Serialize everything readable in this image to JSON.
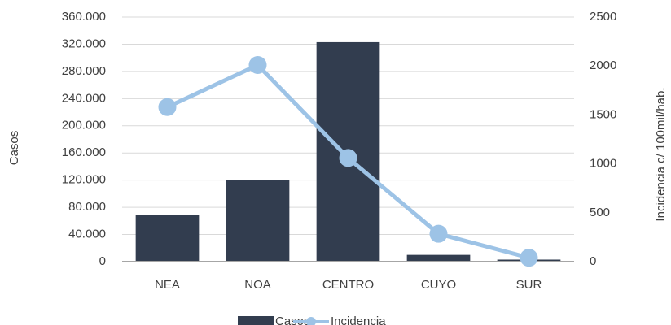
{
  "chart_data": {
    "type": "combo",
    "y_label": "Casos",
    "y2_label": "Incidencia c/ 100mil/hab.",
    "categories": [
      "NEA",
      "NOA",
      "CENTRO",
      "CUYO",
      "SUR"
    ],
    "series": [
      {
        "name": "Casos",
        "type": "bar",
        "color": "#323d4f",
        "values": [
          69000,
          120000,
          323000,
          10000,
          3000
        ]
      },
      {
        "name": "Incidencia",
        "type": "line",
        "axis": "y2",
        "color": "#9dc3e6",
        "values": [
          1580,
          2010,
          1060,
          285,
          40
        ]
      }
    ],
    "ylim": [
      0,
      360000
    ],
    "yticks": [
      0,
      {
        "value": 40000,
        "label": "40.000"
      },
      {
        "value": 80000,
        "label": "80.000"
      },
      {
        "value": 120000,
        "label": "120.000"
      },
      {
        "value": 160000,
        "label": "160.000"
      },
      {
        "value": 200000,
        "label": "200.000"
      },
      {
        "value": 240000,
        "label": "240.000"
      },
      {
        "value": 280000,
        "label": "280.000"
      },
      {
        "value": 320000,
        "label": "320.000"
      },
      {
        "value": 360000,
        "label": "360.000"
      }
    ],
    "y2lim": [
      0,
      2500
    ],
    "y2ticks": [
      0,
      500,
      1000,
      1500,
      2000,
      2500
    ],
    "grid": true
  }
}
